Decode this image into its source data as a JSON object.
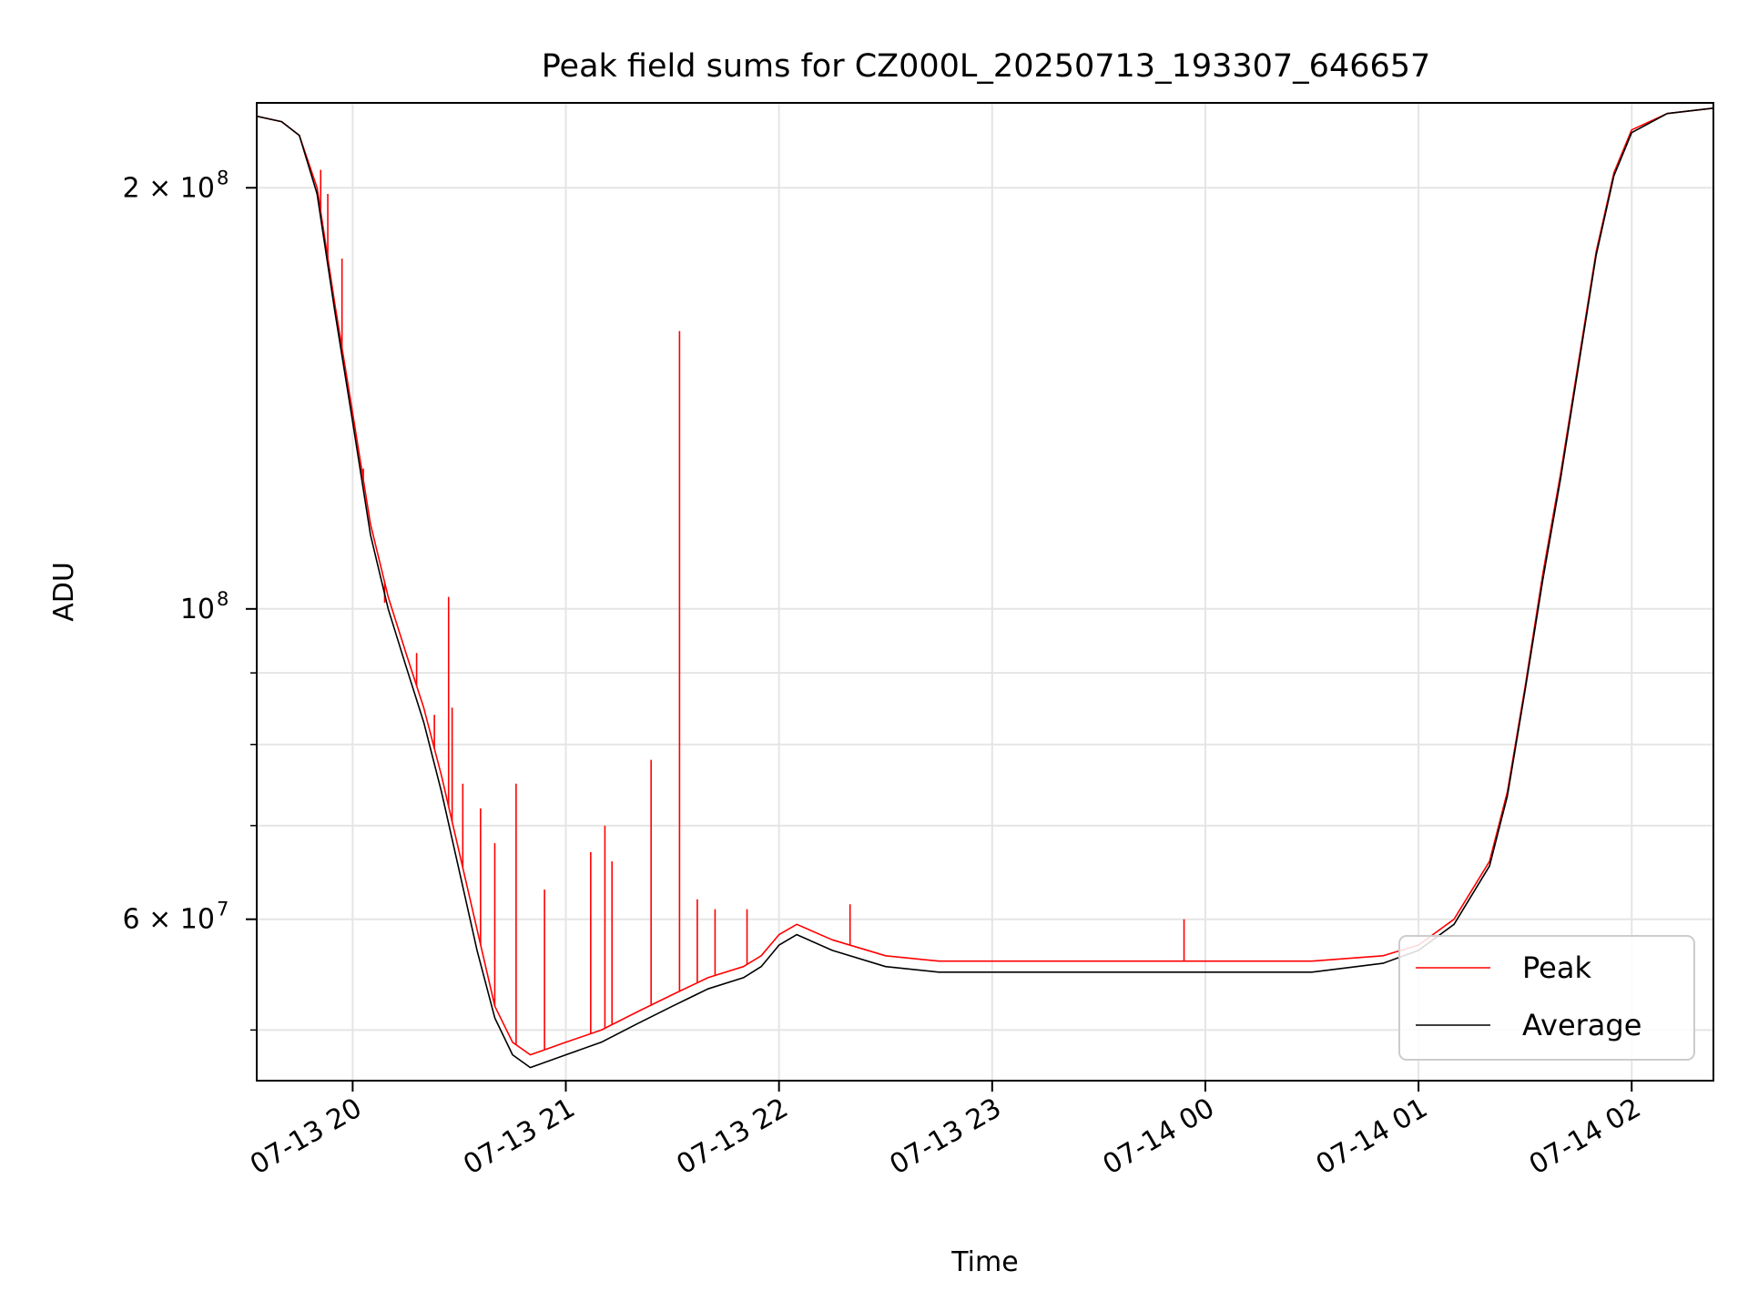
{
  "chart_data": {
    "type": "line",
    "title": "Peak field sums for CZ000L_20250713_193307_646657",
    "xlabel": "Time",
    "ylabel": "ADU",
    "x_scale": "time",
    "y_scale": "log",
    "xlim": [
      "2025-07-13 19:33",
      "2025-07-14 02:23"
    ],
    "ylim": [
      46000000,
      230000000
    ],
    "grid": true,
    "legend_position": "lower-right",
    "x_ticks": [
      {
        "value": "2025-07-13 20:00",
        "label": "07-13 20"
      },
      {
        "value": "2025-07-13 21:00",
        "label": "07-13 21"
      },
      {
        "value": "2025-07-13 22:00",
        "label": "07-13 22"
      },
      {
        "value": "2025-07-13 23:00",
        "label": "07-13 23"
      },
      {
        "value": "2025-07-14 00:00",
        "label": "07-14 00"
      },
      {
        "value": "2025-07-14 01:00",
        "label": "07-14 01"
      },
      {
        "value": "2025-07-14 02:00",
        "label": "07-14 02"
      }
    ],
    "y_major_ticks": [
      {
        "value": 60000000,
        "label_base": "6 × 10",
        "label_exp": "7"
      },
      {
        "value": 100000000,
        "label_base": "10",
        "label_exp": "8"
      },
      {
        "value": 200000000,
        "label_base": "2 × 10",
        "label_exp": "8"
      }
    ],
    "y_minor_ticks": [
      50000000,
      70000000,
      80000000,
      90000000
    ],
    "series": [
      {
        "name": "Peak",
        "color": "#ff0000",
        "x": [
          "2025-07-13 19:33",
          "2025-07-13 19:40",
          "2025-07-13 19:45",
          "2025-07-13 19:50",
          "2025-07-13 19:55",
          "2025-07-13 20:00",
          "2025-07-13 20:05",
          "2025-07-13 20:10",
          "2025-07-13 20:15",
          "2025-07-13 20:20",
          "2025-07-13 20:25",
          "2025-07-13 20:30",
          "2025-07-13 20:35",
          "2025-07-13 20:40",
          "2025-07-13 20:45",
          "2025-07-13 20:50",
          "2025-07-13 20:55",
          "2025-07-13 21:00",
          "2025-07-13 21:10",
          "2025-07-13 21:20",
          "2025-07-13 21:30",
          "2025-07-13 21:40",
          "2025-07-13 21:50",
          "2025-07-13 21:55",
          "2025-07-13 22:00",
          "2025-07-13 22:05",
          "2025-07-13 22:15",
          "2025-07-13 22:30",
          "2025-07-13 22:45",
          "2025-07-13 23:00",
          "2025-07-13 23:30",
          "2025-07-14 00:00",
          "2025-07-14 00:30",
          "2025-07-14 00:50",
          "2025-07-14 01:00",
          "2025-07-14 01:10",
          "2025-07-14 01:20",
          "2025-07-14 01:25",
          "2025-07-14 01:30",
          "2025-07-14 01:35",
          "2025-07-14 01:40",
          "2025-07-14 01:45",
          "2025-07-14 01:50",
          "2025-07-14 01:55",
          "2025-07-14 02:00",
          "2025-07-14 02:10",
          "2025-07-14 02:23"
        ],
        "values": [
          225000000,
          223000000,
          218000000,
          200000000,
          165000000,
          138000000,
          115000000,
          102000000,
          93000000,
          85000000,
          76000000,
          67000000,
          59000000,
          52000000,
          49000000,
          48000000,
          48500000,
          49000000,
          50000000,
          51500000,
          53000000,
          54500000,
          55500000,
          56500000,
          58500000,
          59500000,
          58000000,
          56500000,
          56000000,
          56000000,
          56000000,
          56000000,
          56000000,
          56500000,
          57500000,
          60000000,
          66000000,
          74000000,
          88000000,
          106000000,
          125000000,
          150000000,
          180000000,
          205000000,
          220000000,
          226000000,
          228000000
        ],
        "spikes": [
          {
            "x": "2025-07-13 19:51",
            "value": 206000000
          },
          {
            "x": "2025-07-13 19:53",
            "value": 198000000
          },
          {
            "x": "2025-07-13 19:57",
            "value": 178000000
          },
          {
            "x": "2025-07-13 20:03",
            "value": 126000000
          },
          {
            "x": "2025-07-13 20:09",
            "value": 101000000
          },
          {
            "x": "2025-07-13 20:18",
            "value": 93000000
          },
          {
            "x": "2025-07-13 20:23",
            "value": 84000000
          },
          {
            "x": "2025-07-13 20:27",
            "value": 102000000
          },
          {
            "x": "2025-07-13 20:28",
            "value": 85000000
          },
          {
            "x": "2025-07-13 20:31",
            "value": 75000000
          },
          {
            "x": "2025-07-13 20:36",
            "value": 72000000
          },
          {
            "x": "2025-07-13 20:40",
            "value": 68000000
          },
          {
            "x": "2025-07-13 20:46",
            "value": 75000000
          },
          {
            "x": "2025-07-13 20:54",
            "value": 63000000
          },
          {
            "x": "2025-07-13 21:07",
            "value": 67000000
          },
          {
            "x": "2025-07-13 21:11",
            "value": 70000000
          },
          {
            "x": "2025-07-13 21:13",
            "value": 66000000
          },
          {
            "x": "2025-07-13 21:24",
            "value": 78000000
          },
          {
            "x": "2025-07-13 21:32",
            "value": 158000000
          },
          {
            "x": "2025-07-13 21:37",
            "value": 62000000
          },
          {
            "x": "2025-07-13 21:42",
            "value": 61000000
          },
          {
            "x": "2025-07-13 21:51",
            "value": 61000000
          },
          {
            "x": "2025-07-13 22:20",
            "value": 61500000
          },
          {
            "x": "2025-07-13 23:54",
            "value": 60000000
          }
        ]
      },
      {
        "name": "Average",
        "color": "#000000",
        "x": [
          "2025-07-13 19:33",
          "2025-07-13 19:40",
          "2025-07-13 19:45",
          "2025-07-13 19:50",
          "2025-07-13 19:55",
          "2025-07-13 20:00",
          "2025-07-13 20:05",
          "2025-07-13 20:10",
          "2025-07-13 20:15",
          "2025-07-13 20:20",
          "2025-07-13 20:25",
          "2025-07-13 20:30",
          "2025-07-13 20:35",
          "2025-07-13 20:40",
          "2025-07-13 20:45",
          "2025-07-13 20:50",
          "2025-07-13 20:55",
          "2025-07-13 21:00",
          "2025-07-13 21:10",
          "2025-07-13 21:20",
          "2025-07-13 21:30",
          "2025-07-13 21:40",
          "2025-07-13 21:50",
          "2025-07-13 21:55",
          "2025-07-13 22:00",
          "2025-07-13 22:05",
          "2025-07-13 22:15",
          "2025-07-13 22:30",
          "2025-07-13 22:45",
          "2025-07-13 23:00",
          "2025-07-13 23:30",
          "2025-07-14 00:00",
          "2025-07-14 00:30",
          "2025-07-14 00:50",
          "2025-07-14 01:00",
          "2025-07-14 01:10",
          "2025-07-14 01:20",
          "2025-07-14 01:25",
          "2025-07-14 01:30",
          "2025-07-14 01:35",
          "2025-07-14 01:40",
          "2025-07-14 01:45",
          "2025-07-14 01:50",
          "2025-07-14 01:55",
          "2025-07-14 02:00",
          "2025-07-14 02:10",
          "2025-07-14 02:23"
        ],
        "values": [
          225000000,
          223000000,
          218000000,
          198000000,
          163000000,
          136000000,
          113000000,
          100000000,
          91000000,
          83000000,
          74000000,
          65000000,
          57000000,
          51000000,
          48000000,
          47000000,
          47500000,
          48000000,
          49000000,
          50500000,
          52000000,
          53500000,
          54500000,
          55500000,
          57500000,
          58500000,
          57000000,
          55500000,
          55000000,
          55000000,
          55000000,
          55000000,
          55000000,
          55800000,
          57000000,
          59500000,
          65500000,
          73500000,
          87500000,
          105000000,
          124000000,
          149000000,
          179000000,
          204000000,
          219000000,
          226000000,
          228000000
        ]
      }
    ]
  }
}
